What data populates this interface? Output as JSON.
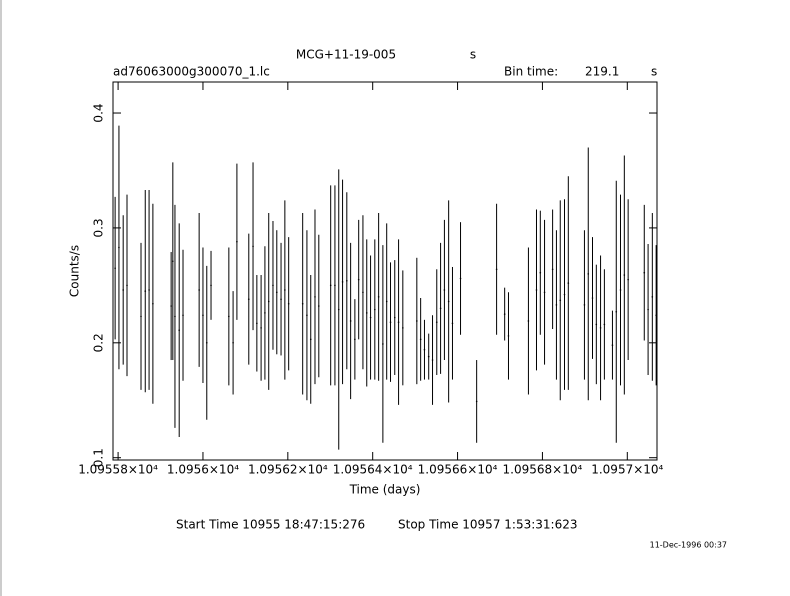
{
  "chart_data": {
    "type": "errorbar",
    "title": "MCG+11-19-005",
    "title_unit": "s",
    "file_name": "ad76063000g300070_1.lc",
    "bin_time_label": "Bin time:",
    "bin_time": "219.1",
    "bin_time_unit": "s",
    "y_label": "Counts/s",
    "x_label": "Time (days)",
    "start_time": "Start Time 10955 18:47:15:276",
    "stop_time": "Stop Time 10957  1:53:31:623",
    "date_stamp": "11-Dec-1996 00:37",
    "color": "#000000",
    "xlim": [
      10955.788,
      10957.07
    ],
    "ylim": [
      0.098,
      0.427
    ],
    "xticks": [
      {
        "value": 10955.8,
        "label": "1.09558×10⁴"
      },
      {
        "value": 10956.0,
        "label": "1.0956×10⁴"
      },
      {
        "value": 10956.2,
        "label": "1.09562×10⁴"
      },
      {
        "value": 10956.4,
        "label": "1.09564×10⁴"
      },
      {
        "value": 10956.6,
        "label": "1.09566×10⁴"
      },
      {
        "value": 10956.8,
        "label": "1.09568×10⁴"
      },
      {
        "value": 10957.0,
        "label": "1.0957×10⁴"
      }
    ],
    "yticks": [
      0.1,
      0.2,
      0.3,
      0.4
    ],
    "x": [
      10955.793,
      10955.802,
      10955.812,
      10955.821,
      10955.854,
      10955.864,
      10955.873,
      10955.882,
      10955.925,
      10955.929,
      10955.934,
      10955.944,
      10955.953,
      10955.991,
      10956.0,
      10956.009,
      10956.019,
      10956.061,
      10956.071,
      10956.08,
      10956.108,
      10956.118,
      10956.127,
      10956.137,
      10956.146,
      10956.155,
      10956.165,
      10956.174,
      10956.184,
      10956.193,
      10956.202,
      10956.235,
      10956.245,
      10956.254,
      10956.264,
      10956.273,
      10956.301,
      10956.311,
      10956.32,
      10956.329,
      10956.339,
      10956.348,
      10956.358,
      10956.367,
      10956.377,
      10956.386,
      10956.395,
      10956.405,
      10956.414,
      10956.424,
      10956.433,
      10956.442,
      10956.452,
      10956.461,
      10956.471,
      10956.504,
      10956.513,
      10956.522,
      10956.532,
      10956.541,
      10956.551,
      10956.56,
      10956.569,
      10956.579,
      10956.588,
      10956.607,
      10956.645,
      10956.692,
      10956.711,
      10956.72,
      10956.767,
      10956.786,
      10956.795,
      10956.805,
      10956.824,
      10956.833,
      10956.842,
      10956.852,
      10956.861,
      10956.899,
      10956.908,
      10956.918,
      10956.927,
      10956.937,
      10956.946,
      10956.965,
      10956.974,
      10956.984,
      10956.993,
      10957.002,
      10957.04,
      10957.049,
      10957.059,
      10957.068
    ],
    "values": [
      0.265,
      0.283,
      0.246,
      0.25,
      0.223,
      0.245,
      0.246,
      0.234,
      0.232,
      0.271,
      0.223,
      0.211,
      0.224,
      0.246,
      0.224,
      0.2,
      0.25,
      0.223,
      0.2,
      0.288,
      0.238,
      0.284,
      0.217,
      0.213,
      0.226,
      0.236,
      0.25,
      0.244,
      0.238,
      0.246,
      0.234,
      0.234,
      0.224,
      0.203,
      0.24,
      0.232,
      0.25,
      0.25,
      0.229,
      0.253,
      0.254,
      0.219,
      0.203,
      0.255,
      0.244,
      0.226,
      0.222,
      0.229,
      0.24,
      0.199,
      0.236,
      0.218,
      0.222,
      0.218,
      0.213,
      0.219,
      0.203,
      0.194,
      0.188,
      0.185,
      0.218,
      0.23,
      0.246,
      0.236,
      0.217,
      0.256,
      0.149,
      0.264,
      0.225,
      0.206,
      0.219,
      0.246,
      0.261,
      0.244,
      0.264,
      0.233,
      0.237,
      0.242,
      0.252,
      0.233,
      0.26,
      0.239,
      0.216,
      0.213,
      0.216,
      0.198,
      0.227,
      0.246,
      0.259,
      0.255,
      0.261,
      0.229,
      0.24,
      0.224
    ],
    "errors": [
      0.062,
      0.106,
      0.065,
      0.079,
      0.064,
      0.088,
      0.087,
      0.087,
      0.047,
      0.086,
      0.097,
      0.093,
      0.057,
      0.067,
      0.059,
      0.067,
      0.03,
      0.06,
      0.045,
      0.068,
      0.057,
      0.073,
      0.042,
      0.046,
      0.058,
      0.077,
      0.056,
      0.054,
      0.049,
      0.078,
      0.058,
      0.079,
      0.074,
      0.056,
      0.076,
      0.062,
      0.087,
      0.087,
      0.122,
      0.089,
      0.077,
      0.068,
      0.035,
      0.052,
      0.067,
      0.064,
      0.054,
      0.061,
      0.073,
      0.086,
      0.068,
      0.052,
      0.05,
      0.072,
      0.05,
      0.055,
      0.036,
      0.026,
      0.02,
      0.039,
      0.046,
      0.057,
      0.061,
      0.088,
      0.049,
      0.049,
      0.036,
      0.057,
      0.023,
      0.038,
      0.064,
      0.07,
      0.054,
      0.063,
      0.052,
      0.065,
      0.087,
      0.083,
      0.093,
      0.065,
      0.11,
      0.053,
      0.052,
      0.063,
      0.048,
      0.03,
      0.114,
      0.083,
      0.104,
      0.07,
      0.059,
      0.057,
      0.073,
      0.061
    ]
  }
}
